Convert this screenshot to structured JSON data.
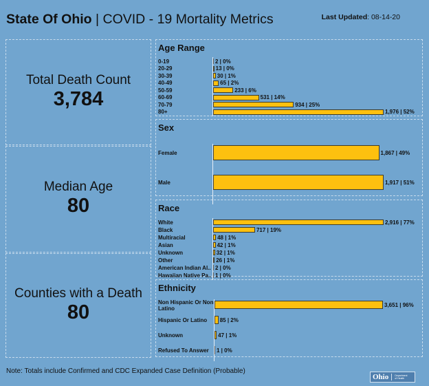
{
  "header": {
    "title_bold": "State Of Ohio",
    "title_sep": " | ",
    "title_rest": "COVID - 19 Mortality Metrics",
    "last_updated_label": "Last Updated",
    "last_updated_value": ": 08-14-20"
  },
  "kpis": [
    {
      "label": "Total Death Count",
      "value": "3,784"
    },
    {
      "label": "Median Age",
      "value": "80"
    },
    {
      "label": "Counties with a Death",
      "value": "80"
    }
  ],
  "colors": {
    "background": "#71a5cf",
    "bar": "#fdc00f",
    "bar_border": "#3d3b2c"
  },
  "chart_data": [
    {
      "type": "bar",
      "orientation": "horizontal",
      "title": "Age Range",
      "categories": [
        "0-19",
        "20-29",
        "30-39",
        "40-49",
        "50-59",
        "60-69",
        "70-79",
        "80+"
      ],
      "values": [
        2,
        13,
        30,
        65,
        233,
        531,
        934,
        1976
      ],
      "percents": [
        "0%",
        "0%",
        "1%",
        "2%",
        "6%",
        "14%",
        "25%",
        "52%"
      ],
      "data_labels": [
        "2 | 0%",
        "13 | 0%",
        "30 | 1%",
        "65 | 2%",
        "233 | 6%",
        "531 | 14%",
        "934 | 25%",
        "1,976 | 52%"
      ],
      "max": 1976
    },
    {
      "type": "bar",
      "orientation": "horizontal",
      "title": "Sex",
      "categories": [
        "Female",
        "Male"
      ],
      "values": [
        1867,
        1917
      ],
      "percents": [
        "49%",
        "51%"
      ],
      "data_labels": [
        "1,867 | 49%",
        "1,917 | 51%"
      ],
      "max": 1917
    },
    {
      "type": "bar",
      "orientation": "horizontal",
      "title": "Race",
      "categories": [
        "White",
        "Black",
        "Multiracial",
        "Asian",
        "Unknown",
        "Other",
        "American Indian Al..",
        "Hawaiian Native Pa.."
      ],
      "values": [
        2916,
        717,
        48,
        42,
        32,
        26,
        2,
        1
      ],
      "percents": [
        "77%",
        "19%",
        "1%",
        "1%",
        "1%",
        "1%",
        "0%",
        "0%"
      ],
      "data_labels": [
        "2,916 | 77%",
        "717 | 19%",
        "48 | 1%",
        "42 | 1%",
        "32 | 1%",
        "26 | 1%",
        "2 | 0%",
        "1 | 0%"
      ],
      "max": 2916
    },
    {
      "type": "bar",
      "orientation": "horizontal",
      "title": "Ethnicity",
      "categories": [
        "Non Hispanic Or Non Latino",
        "Hispanic Or Latino",
        "Unknown",
        "Refused To Answer"
      ],
      "values": [
        3651,
        85,
        47,
        1
      ],
      "percents": [
        "96%",
        "2%",
        "1%",
        "0%"
      ],
      "data_labels": [
        "3,651 | 96%",
        "85 | 2%",
        "47 | 1%",
        "1 | 0%"
      ],
      "max": 3651
    }
  ],
  "footer": {
    "note": "Note: Totals include Confirmed and CDC Expanded Case Definition (Probable)",
    "logo_text": "Ohio",
    "logo_dept_line1": "Department",
    "logo_dept_line2": "of Health"
  }
}
